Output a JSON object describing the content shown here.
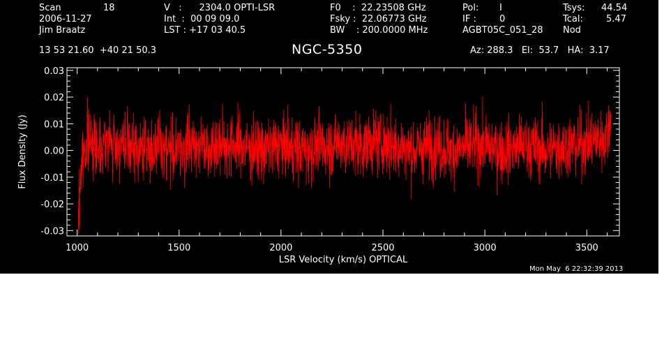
{
  "header": {
    "scan_label": "Scan",
    "scan_value": "18",
    "date": "2006-11-27",
    "observer": "Jim Braatz",
    "velocity": "V   :      2304.0 OPTI-LSR",
    "integration": "Int  :  00 09 09.0",
    "lst": "LST : +17 03 40.5",
    "f0": "F0    :  22.23508 GHz",
    "fsky": "Fsky :  22.06773 GHz",
    "bw": "BW    : 200.0000 MHz",
    "pol_label": "Pol:",
    "pol_value": "I",
    "if_label": "IF :",
    "if_value": "0",
    "session": "AGBT05C_051_28",
    "tsys_label": "Tsys:",
    "tsys_value": "44.54",
    "tcal_label": "Tcal:",
    "tcal_value": "5.47",
    "mode": "Nod",
    "coords": "13 53 21.60  +40 21 50.3",
    "pointing": "Az: 288.3   El:  53.7   HA:  3.17"
  },
  "footer": {
    "timestamp": "Mon May  6 22:32:39 2013"
  },
  "colors": {
    "background": "#000000",
    "axes": "#ffffff",
    "trace": "#ff0000"
  },
  "chart_data": {
    "type": "line",
    "title": "NGC-5350",
    "xlabel": "LSR Velocity (km/s) OPTICAL",
    "ylabel": "Flux Density (Jy)",
    "xlim": [
      950,
      3660
    ],
    "ylim": [
      -0.032,
      0.031
    ],
    "x_ticks": [
      1000,
      1500,
      2000,
      2500,
      3000,
      3500
    ],
    "x_tick_labels": [
      "1000",
      "1500",
      "2000",
      "2500",
      "3000",
      "3500"
    ],
    "y_ticks": [
      -0.03,
      -0.02,
      -0.01,
      0.0,
      0.01,
      0.02,
      0.03
    ],
    "y_tick_labels": [
      "-0.03",
      "-0.02",
      "-0.01",
      "0.00",
      "0.01",
      "0.02",
      "0.03"
    ],
    "grid": false,
    "series": [
      {
        "color": "#ff0000",
        "x": [
          1005,
          1010,
          1015,
          1020,
          1030,
          1040,
          1060,
          1080,
          1100,
          1150,
          1200,
          1250,
          1300,
          1350,
          1400,
          1450,
          1500,
          1550,
          1600,
          1650,
          1700,
          1750,
          1800,
          1850,
          1900,
          1950,
          2000,
          2050,
          2100,
          2150,
          2200,
          2250,
          2300,
          2350,
          2400,
          2450,
          2500,
          2550,
          2600,
          2650,
          2700,
          2750,
          2800,
          2850,
          2900,
          2950,
          3000,
          3050,
          3100,
          3150,
          3200,
          3250,
          3300,
          3350,
          3400,
          3450,
          3500,
          3550,
          3580,
          3600,
          3610,
          3620
        ],
        "y": [
          -0.027,
          -0.022,
          -0.012,
          -0.006,
          -0.002,
          0.002,
          0.004,
          0.003,
          0.002,
          0.003,
          0.002,
          0.001,
          0.0,
          0.001,
          0.002,
          0.001,
          0.0,
          0.002,
          0.003,
          0.002,
          0.002,
          0.003,
          0.002,
          0.001,
          0.0,
          0.001,
          0.002,
          0.001,
          0.0,
          0.001,
          0.002,
          0.002,
          0.003,
          0.002,
          0.002,
          0.003,
          0.003,
          0.002,
          0.001,
          0.0,
          0.001,
          0.002,
          0.001,
          0.0,
          0.001,
          0.002,
          0.002,
          0.001,
          0.0,
          0.001,
          0.002,
          0.001,
          0.0,
          0.001,
          0.002,
          0.002,
          0.003,
          0.004,
          0.004,
          0.006,
          0.01,
          0.016
        ]
      }
    ]
  }
}
